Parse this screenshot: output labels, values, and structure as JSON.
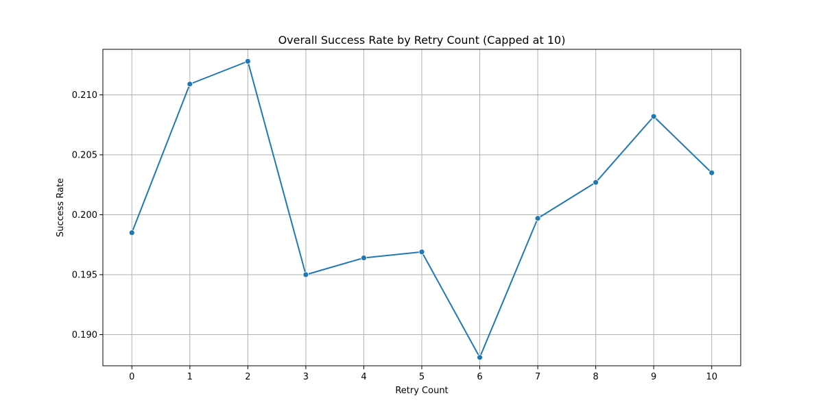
{
  "chart_data": {
    "type": "line",
    "title": "Overall Success Rate by Retry Count (Capped at 10)",
    "xlabel": "Retry Count",
    "ylabel": "Success Rate",
    "x": [
      0,
      1,
      2,
      3,
      4,
      5,
      6,
      7,
      8,
      9,
      10
    ],
    "series": [
      {
        "values": [
          0.1985,
          0.2109,
          0.2128,
          0.195,
          0.1964,
          0.1969,
          0.1881,
          0.1997,
          0.2027,
          0.2082,
          0.2035
        ],
        "color": "#1f77b4",
        "marker": "circle"
      }
    ],
    "xlim": [
      -0.5,
      10.5
    ],
    "ylim": [
      0.1874,
      0.2138
    ],
    "xticks": [
      "0",
      "1",
      "2",
      "3",
      "4",
      "5",
      "6",
      "7",
      "8",
      "9",
      "10"
    ],
    "yticks": [
      "0.190",
      "0.195",
      "0.200",
      "0.205",
      "0.210"
    ],
    "ytick_values": [
      0.19,
      0.195,
      0.2,
      0.205,
      0.21
    ],
    "grid": true
  }
}
